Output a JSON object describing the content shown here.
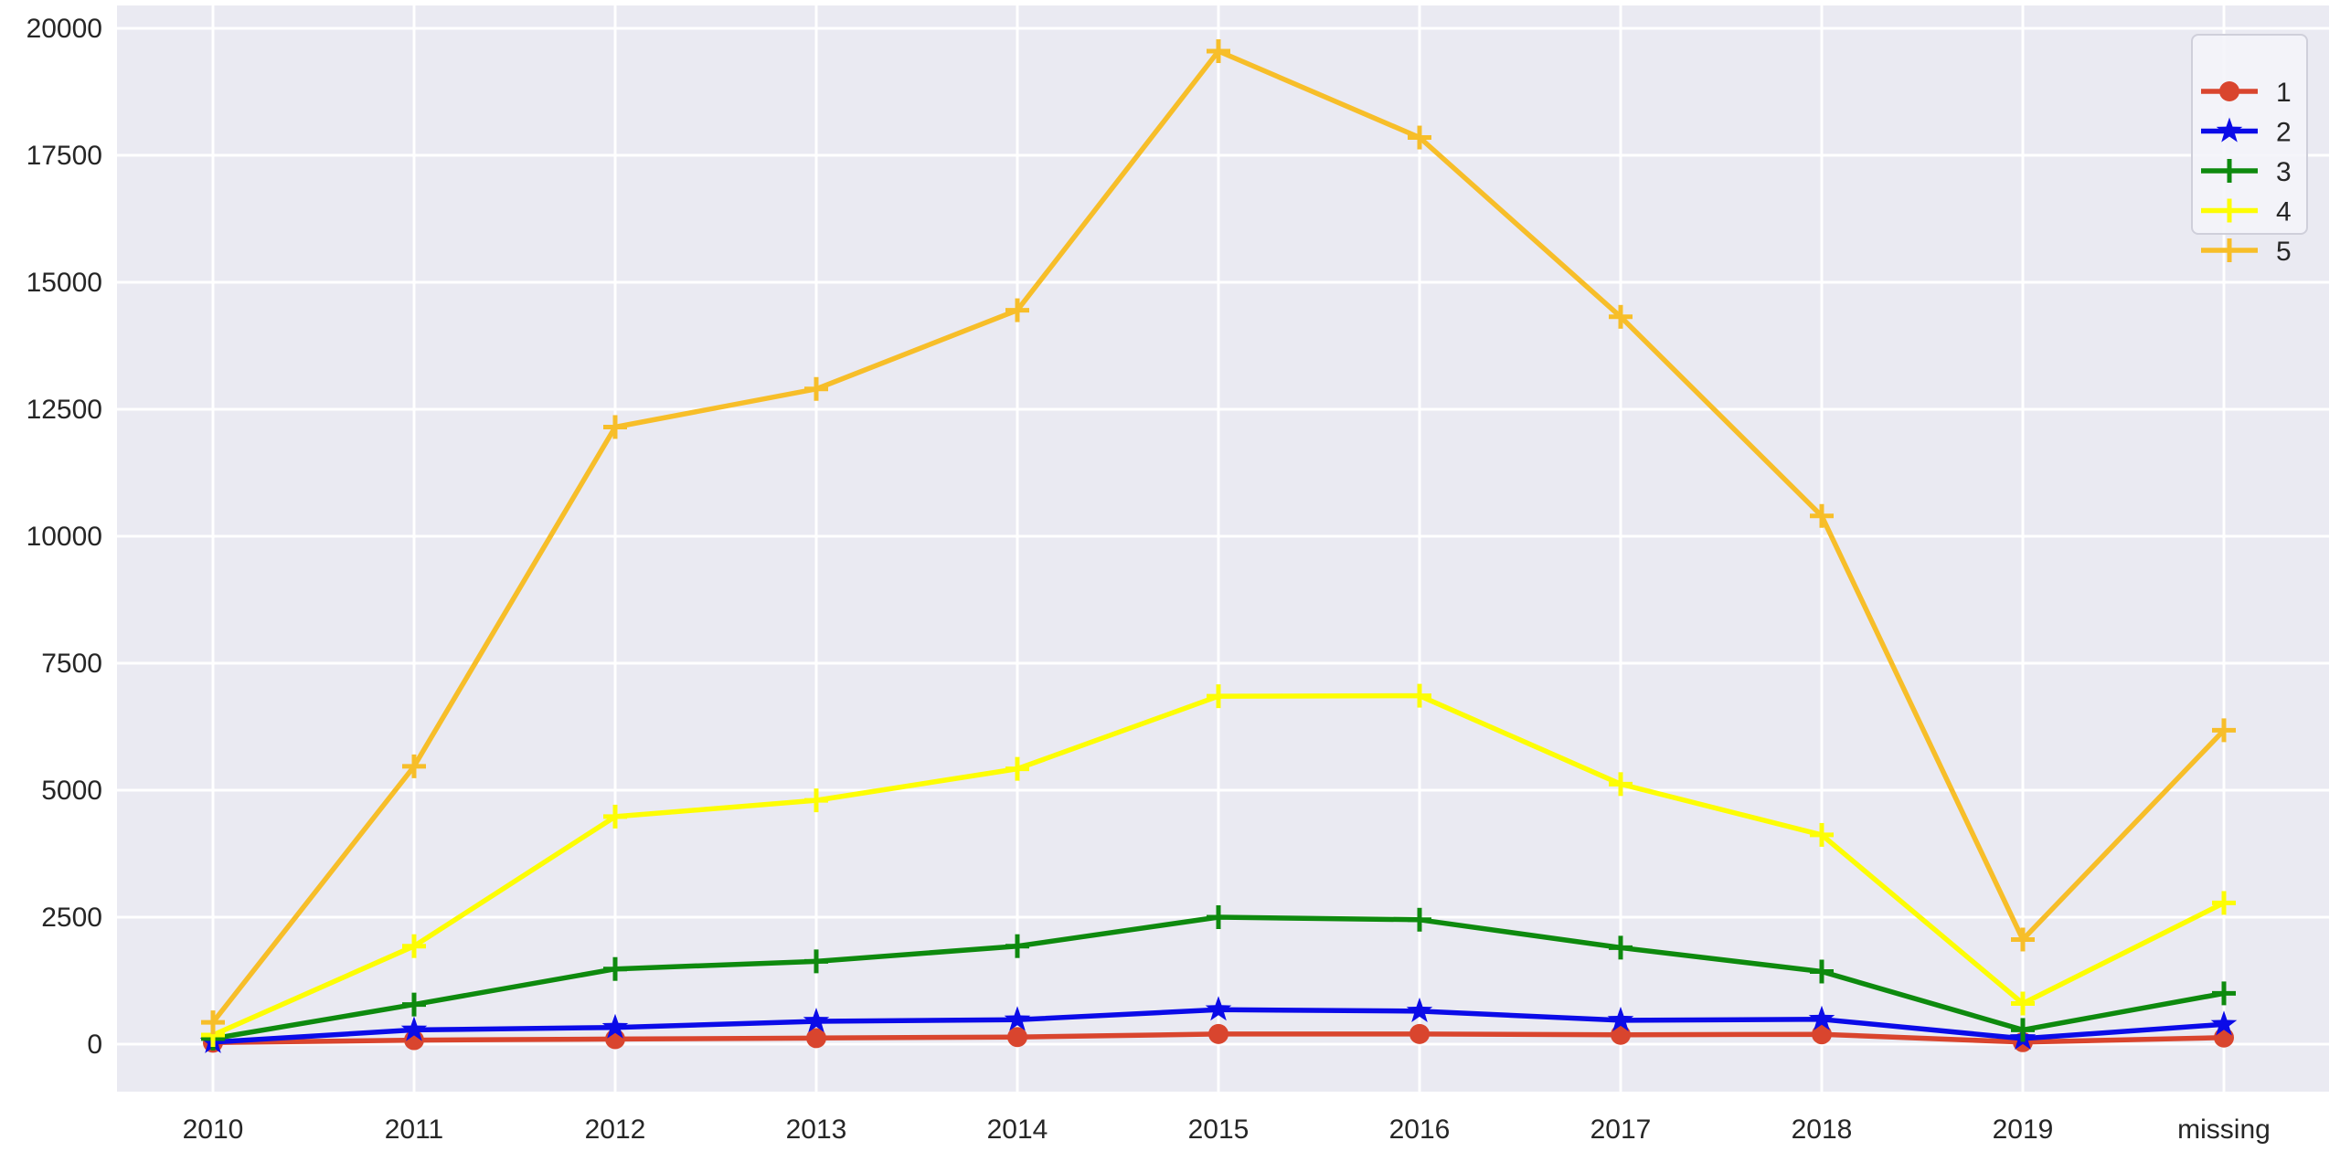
{
  "chart_data": {
    "type": "line",
    "title": "",
    "xlabel": "",
    "ylabel": "",
    "categories": [
      "2010",
      "2011",
      "2012",
      "2013",
      "2014",
      "2015",
      "2016",
      "2017",
      "2018",
      "2019",
      "missing"
    ],
    "series": [
      {
        "name": "1",
        "color": "#d9452e",
        "marker": "circle",
        "values": [
          30,
          80,
          100,
          120,
          140,
          200,
          200,
          185,
          195,
          40,
          130
        ]
      },
      {
        "name": "2",
        "color": "#0b0be8",
        "marker": "star",
        "values": [
          40,
          280,
          330,
          450,
          480,
          680,
          650,
          470,
          490,
          110,
          390
        ]
      },
      {
        "name": "3",
        "color": "#0e8a0e",
        "marker": "plus",
        "values": [
          110,
          780,
          1480,
          1630,
          1930,
          2500,
          2450,
          1900,
          1430,
          280,
          1000
        ]
      },
      {
        "name": "4",
        "color": "#fdfd04",
        "marker": "plus",
        "values": [
          180,
          1930,
          4480,
          4800,
          5420,
          6850,
          6860,
          5120,
          4120,
          800,
          2780
        ]
      },
      {
        "name": "5",
        "color": "#f7be29",
        "marker": "plus",
        "values": [
          430,
          5470,
          12150,
          12900,
          14450,
          19550,
          17850,
          14320,
          10400,
          2060,
          6180
        ]
      }
    ],
    "ylim": [
      0,
      20000
    ],
    "yticks": [
      "0",
      "2500",
      "5000",
      "7500",
      "10000",
      "12500",
      "15000",
      "17500",
      "20000"
    ],
    "grid": true,
    "grid_color": "#ffffff",
    "plot_background": "#eaeaf2",
    "figure_background": "#ffffff",
    "tick_color": "#262626",
    "legend": {
      "position": "upper right",
      "entries": [
        "1",
        "2",
        "3",
        "4",
        "5"
      ],
      "background": "#f4f4f9",
      "border_color": "#cfcfda"
    }
  }
}
